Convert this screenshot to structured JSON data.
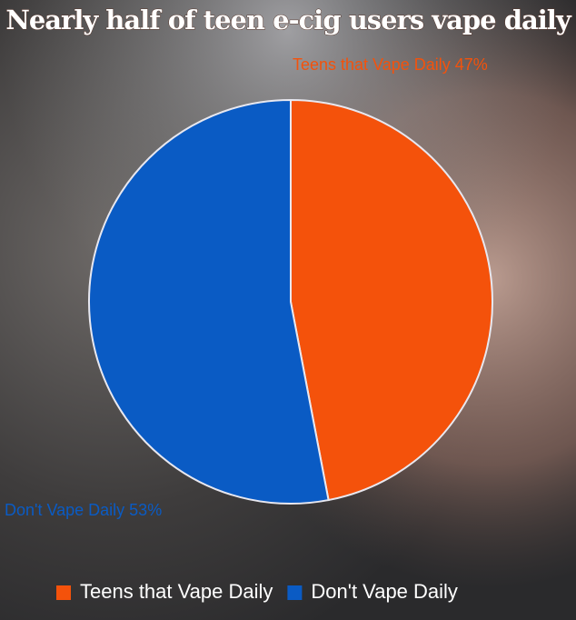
{
  "chart_data": {
    "type": "pie",
    "title": "Nearly half of teen e-cig users vape daily",
    "categories": [
      "Teens that Vape Daily",
      "Don't Vape Daily"
    ],
    "values": [
      47,
      53
    ],
    "value_labels": [
      "47%",
      "53%"
    ],
    "colors": [
      "#f4520b",
      "#0a5bc4"
    ],
    "legend": "bottom"
  }
}
